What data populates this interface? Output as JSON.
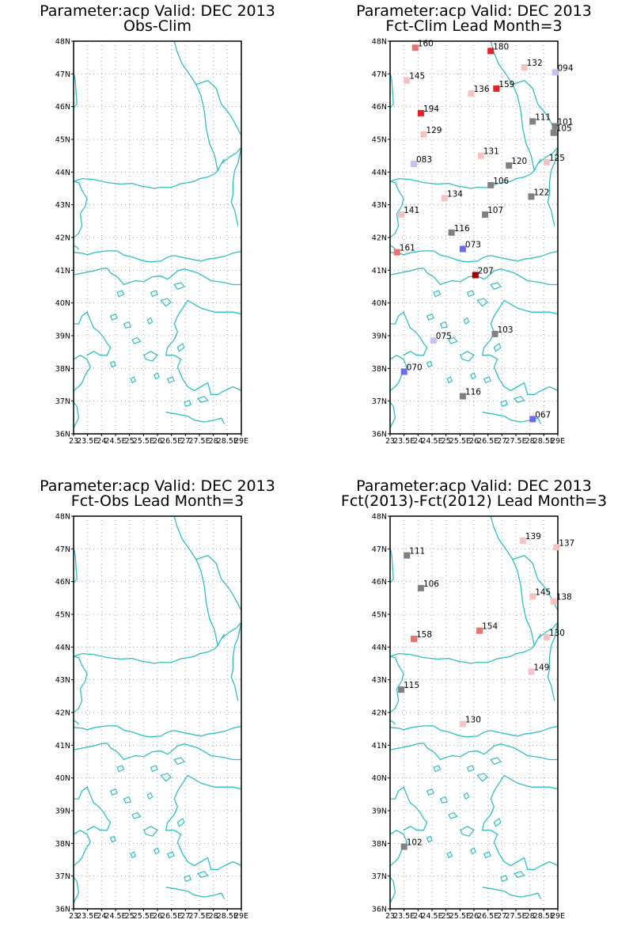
{
  "colors": {
    "coast": "#2ec0c0",
    "grid": "#a0a0a0",
    "frame": "#000000",
    "neutral": "#808080",
    "light_blue": "#c4c4f4",
    "blue": "#6b6bf0",
    "light_red": "#f6c2c2",
    "mid_red": "#ee7070",
    "red": "#e82020",
    "dark_red": "#a00000"
  },
  "axes": {
    "lat_ticks": [
      "36N",
      "37N",
      "38N",
      "39N",
      "40N",
      "41N",
      "42N",
      "43N",
      "44N",
      "45N",
      "46N",
      "47N",
      "48N"
    ],
    "lon_ticks": [
      "23",
      "23.5E",
      "24",
      "24.5E",
      "25",
      "25.5E",
      "26",
      "26.5E",
      "27",
      "27.5E",
      "28",
      "28.5E",
      "29E"
    ]
  },
  "panels": [
    {
      "title1": "Parameter:acp Valid: DEC 2013",
      "title2": "Obs-Clim",
      "stations": []
    },
    {
      "title1": "Parameter:acp Valid: DEC 2013",
      "title2": "Fct-Clim Lead Month=3",
      "stations": [
        {
          "label": "160",
          "lon": 23.9,
          "lat": 47.8,
          "color": "mid_red"
        },
        {
          "label": "180",
          "lon": 26.6,
          "lat": 47.7,
          "color": "red"
        },
        {
          "label": "132",
          "lon": 27.8,
          "lat": 47.2,
          "color": "light_red"
        },
        {
          "label": "094",
          "lon": 28.9,
          "lat": 47.05,
          "color": "light_blue"
        },
        {
          "label": "145",
          "lon": 23.6,
          "lat": 46.8,
          "color": "light_red"
        },
        {
          "label": "136",
          "lon": 25.9,
          "lat": 46.4,
          "color": "light_red"
        },
        {
          "label": "159",
          "lon": 26.8,
          "lat": 46.55,
          "color": "red"
        },
        {
          "label": "194",
          "lon": 24.1,
          "lat": 45.8,
          "color": "red"
        },
        {
          "label": "111",
          "lon": 28.1,
          "lat": 45.55,
          "color": "neutral"
        },
        {
          "label": "101",
          "lon": 28.9,
          "lat": 45.4,
          "color": "neutral"
        },
        {
          "label": "105",
          "lon": 28.85,
          "lat": 45.2,
          "color": "neutral"
        },
        {
          "label": "129",
          "lon": 24.2,
          "lat": 45.15,
          "color": "light_red"
        },
        {
          "label": "131",
          "lon": 26.25,
          "lat": 44.5,
          "color": "light_red"
        },
        {
          "label": "083",
          "lon": 23.85,
          "lat": 44.25,
          "color": "light_blue"
        },
        {
          "label": "120",
          "lon": 27.25,
          "lat": 44.2,
          "color": "neutral"
        },
        {
          "label": "125",
          "lon": 28.6,
          "lat": 44.3,
          "color": "light_red"
        },
        {
          "label": "106",
          "lon": 26.6,
          "lat": 43.6,
          "color": "neutral"
        },
        {
          "label": "134",
          "lon": 24.95,
          "lat": 43.2,
          "color": "light_red"
        },
        {
          "label": "122",
          "lon": 28.05,
          "lat": 43.25,
          "color": "neutral"
        },
        {
          "label": "141",
          "lon": 23.4,
          "lat": 42.7,
          "color": "light_red"
        },
        {
          "label": "107",
          "lon": 26.4,
          "lat": 42.7,
          "color": "neutral"
        },
        {
          "label": "116",
          "lon": 25.2,
          "lat": 42.15,
          "color": "neutral"
        },
        {
          "label": "073",
          "lon": 25.6,
          "lat": 41.65,
          "color": "blue"
        },
        {
          "label": "161",
          "lon": 23.25,
          "lat": 41.55,
          "color": "mid_red"
        },
        {
          "label": "207",
          "lon": 26.05,
          "lat": 40.85,
          "color": "dark_red"
        },
        {
          "label": "103",
          "lon": 26.75,
          "lat": 39.05,
          "color": "neutral"
        },
        {
          "label": "075",
          "lon": 24.55,
          "lat": 38.85,
          "color": "light_blue"
        },
        {
          "label": "070",
          "lon": 23.5,
          "lat": 37.9,
          "color": "blue"
        },
        {
          "label": "116",
          "lon": 25.6,
          "lat": 37.15,
          "color": "neutral"
        },
        {
          "label": "067",
          "lon": 28.1,
          "lat": 36.45,
          "color": "blue"
        }
      ]
    },
    {
      "title1": "Parameter:acp Valid: DEC 2013",
      "title2": "Fct-Obs Lead Month=3",
      "stations": []
    },
    {
      "title1": "Parameter:acp Valid: DEC 2013",
      "title2": "Fct(2013)-Fct(2012) Lead Month=3",
      "stations": [
        {
          "label": "139",
          "lon": 27.75,
          "lat": 47.25,
          "color": "light_red"
        },
        {
          "label": "137",
          "lon": 28.95,
          "lat": 47.05,
          "color": "light_red"
        },
        {
          "label": "111",
          "lon": 23.6,
          "lat": 46.8,
          "color": "neutral"
        },
        {
          "label": "106",
          "lon": 24.1,
          "lat": 45.8,
          "color": "neutral"
        },
        {
          "label": "145",
          "lon": 28.1,
          "lat": 45.55,
          "color": "light_red"
        },
        {
          "label": "138",
          "lon": 28.85,
          "lat": 45.4,
          "color": "light_red"
        },
        {
          "label": "154",
          "lon": 26.2,
          "lat": 44.5,
          "color": "mid_red"
        },
        {
          "label": "158",
          "lon": 23.85,
          "lat": 44.25,
          "color": "mid_red"
        },
        {
          "label": "130",
          "lon": 28.6,
          "lat": 44.3,
          "color": "light_red"
        },
        {
          "label": "149",
          "lon": 28.05,
          "lat": 43.25,
          "color": "light_red"
        },
        {
          "label": "115",
          "lon": 23.4,
          "lat": 42.7,
          "color": "neutral"
        },
        {
          "label": "130",
          "lon": 25.6,
          "lat": 41.65,
          "color": "light_red"
        },
        {
          "label": "102",
          "lon": 23.5,
          "lat": 37.9,
          "color": "neutral"
        }
      ]
    }
  ]
}
